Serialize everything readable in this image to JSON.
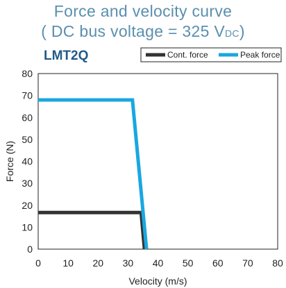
{
  "header": {
    "title_line1": "Force and velocity curve",
    "title_line2_main": "( DC bus voltage = 325 V",
    "title_line2_sub": "DC",
    "title_line2_close": ")",
    "model": "LMT2Q",
    "title_color": "#5a8fae",
    "model_color": "#1f5a8a"
  },
  "chart_data": {
    "type": "line",
    "xlabel": "Velocity (m/s)",
    "ylabel": "Force (N)",
    "xlim": [
      0,
      80
    ],
    "ylim": [
      0,
      80
    ],
    "x_ticks": [
      0,
      10,
      20,
      30,
      40,
      50,
      60,
      70,
      80
    ],
    "y_ticks": [
      0,
      10,
      20,
      30,
      40,
      50,
      60,
      70,
      80
    ],
    "grid": false,
    "legend_position": "top-right",
    "series": [
      {
        "name": "Cont. force",
        "color": "#333333",
        "points": [
          [
            0,
            16.7
          ],
          [
            32,
            16.7
          ],
          [
            34.4,
            16.7
          ],
          [
            35.5,
            0
          ]
        ]
      },
      {
        "name": "Peak force",
        "color": "#1aa7e0",
        "points": [
          [
            0,
            68
          ],
          [
            31.5,
            68
          ],
          [
            36.2,
            0
          ]
        ]
      }
    ]
  }
}
